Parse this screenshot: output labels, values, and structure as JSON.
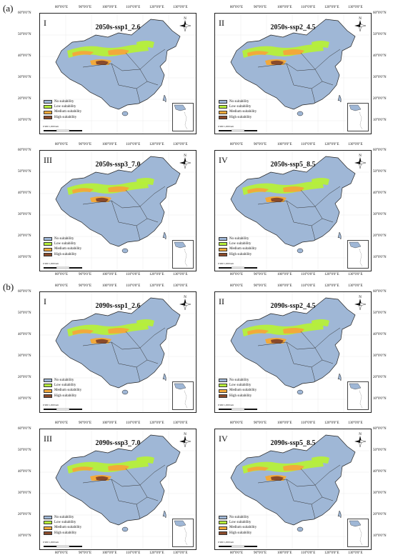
{
  "sections": [
    {
      "label": "(a)",
      "panels": [
        {
          "roman": "I",
          "title": "2050s-ssp1_2.6"
        },
        {
          "roman": "II",
          "title": "2050s-ssp2_4.5"
        },
        {
          "roman": "III",
          "title": "2050s-ssp3_7.0"
        },
        {
          "roman": "IV",
          "title": "2050s-ssp5_8.5"
        }
      ]
    },
    {
      "label": "(b)",
      "panels": [
        {
          "roman": "I",
          "title": "2090s-ssp1_2.6"
        },
        {
          "roman": "II",
          "title": "2090s-ssp2_4.5"
        },
        {
          "roman": "III",
          "title": "2090s-ssp3_7.0"
        },
        {
          "roman": "IV",
          "title": "2090s-ssp5_8.5"
        }
      ]
    }
  ],
  "legend": [
    {
      "label": "No suitability",
      "color": "#9fb7d6"
    },
    {
      "label": "Low suitability",
      "color": "#b6ef3a"
    },
    {
      "label": "Medium suitability",
      "color": "#f2a93b"
    },
    {
      "label": "High suitability",
      "color": "#8a4a2a"
    }
  ],
  "lon_ticks": [
    "80°0'0\"E",
    "90°0'0\"E",
    "100°0'0\"E",
    "110°0'0\"E",
    "120°0'0\"E",
    "130°0'0\"E"
  ],
  "lat_ticks": [
    "60°0'0\"N",
    "50°0'0\"N",
    "40°0'0\"N",
    "30°0'0\"N",
    "20°0'0\"N",
    "10°0'0\"N"
  ],
  "scale_labels": [
    "0",
    "900",
    "1,800",
    "km"
  ],
  "north_label": "N"
}
